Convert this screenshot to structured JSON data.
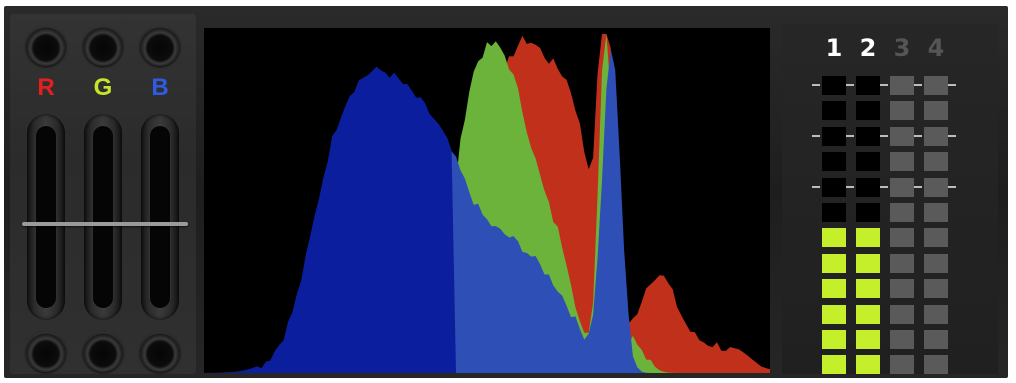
{
  "channels": [
    {
      "label": "R",
      "color": "#e51f1f"
    },
    {
      "label": "G",
      "color": "#c7e62a"
    },
    {
      "label": "B",
      "color": "#2f5be0"
    }
  ],
  "fader_level": 0.47,
  "histogram": {
    "bins": 128,
    "colors": {
      "red": "#c0301b",
      "green": "#6bb33a",
      "blue": "#2e4fb6",
      "blue_dark": "#0b1f9e",
      "background": "#000000"
    }
  },
  "meters": {
    "numbers": [
      {
        "label": "1",
        "active": true
      },
      {
        "label": "2",
        "active": true
      },
      {
        "label": "3",
        "active": false
      },
      {
        "label": "4",
        "active": false
      }
    ],
    "cells_per_column": 12,
    "levels": [
      6,
      6,
      0,
      0
    ],
    "colors": {
      "lit": "#c6ef2b",
      "unlit_active": "#000000",
      "inactive": "#5a5a5a",
      "number_active": "#ffffff",
      "number_inactive": "#555555"
    }
  }
}
